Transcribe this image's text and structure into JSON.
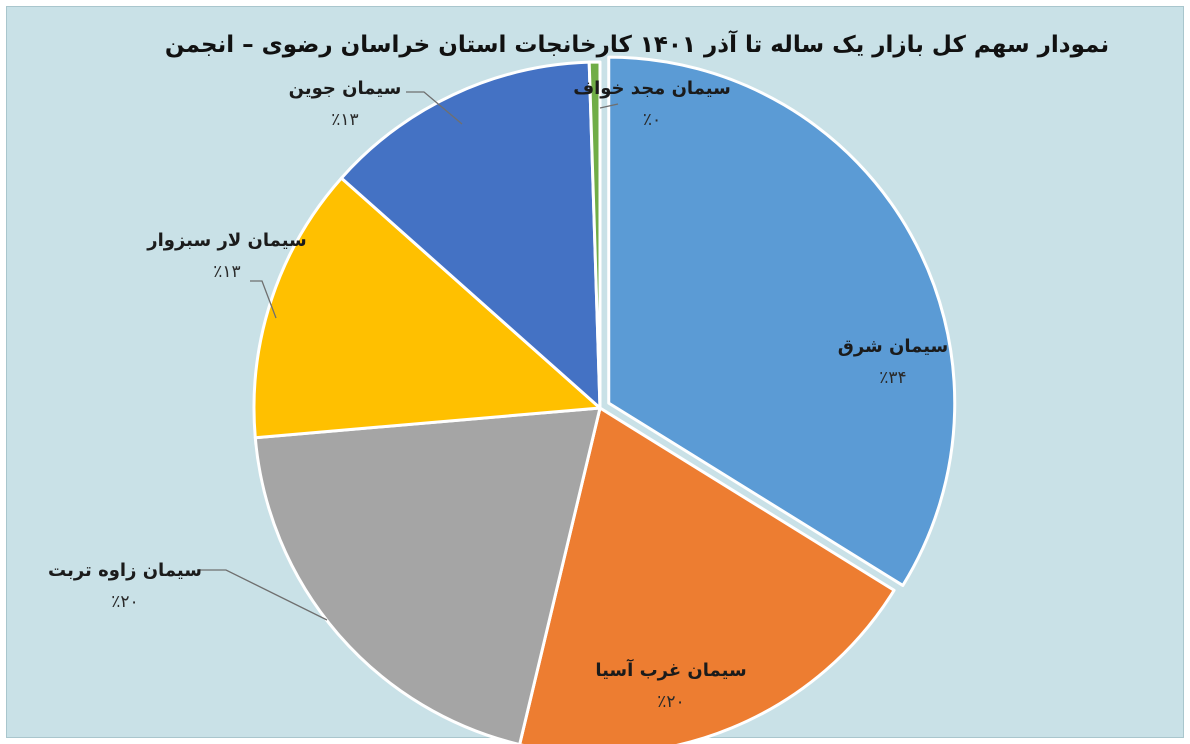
{
  "chart_data": {
    "type": "pie",
    "title": "نمودار سهم کل بازار یک ساله تا آذر ۱۴۰۱ کارخانجات استان خراسان رضوی – انجمن",
    "slices": [
      {
        "label": "سیمان شرق",
        "value": 34,
        "value_label": "٪۳۴",
        "color": "#5b9bd5"
      },
      {
        "label": "سیمان غرب آسیا",
        "value": 20,
        "value_label": "٪۲۰",
        "color": "#ed7d31"
      },
      {
        "label": "سیمان زاوه تربت",
        "value": 20,
        "value_label": "٪۲۰",
        "color": "#a5a5a5"
      },
      {
        "label": "سیمان لار سبزوار",
        "value": 13,
        "value_label": "٪۱۳",
        "color": "#ffc000"
      },
      {
        "label": "سیمان جوین",
        "value": 13,
        "value_label": "٪۱۳",
        "color": "#4472c4"
      },
      {
        "label": "سیمان مجد خواف",
        "value": 0.5,
        "value_label": "٪۰",
        "color": "#70ad47"
      }
    ],
    "start_angle": "12 o'clock",
    "direction": "clockwise",
    "legend": "none (data labels)"
  }
}
